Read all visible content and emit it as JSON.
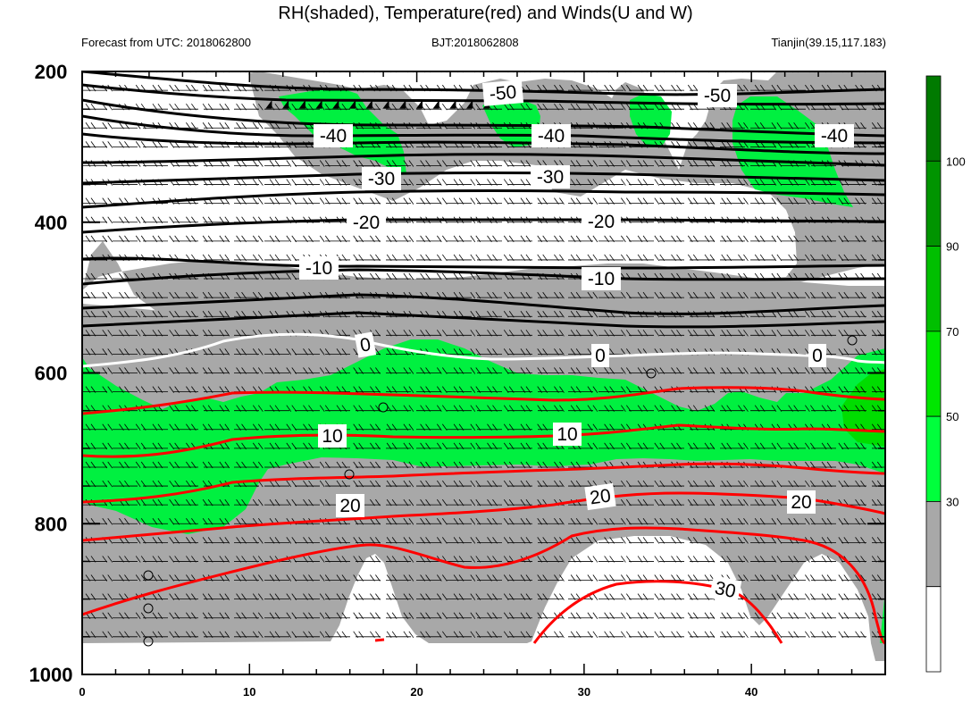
{
  "title": "RH(shaded), Temperature(red) and Winds(U and W)",
  "subtitle_left": "Forecast from UTC: 2018062800",
  "subtitle_center": "BJT:2018062808",
  "subtitle_right": "Tianjin(39.15,117.183)",
  "chart_data": {
    "type": "heatmap",
    "description_fields": [
      "RH",
      "Temperature",
      "Winds"
    ],
    "x_axis": {
      "range": [
        0,
        48
      ],
      "ticks": [
        0,
        10,
        20,
        30,
        40
      ]
    },
    "y_axis": {
      "range": [
        200,
        1000
      ],
      "inverted": true,
      "ticks": [
        200,
        400,
        600,
        800,
        1000
      ]
    },
    "colorbar": {
      "levels": [
        30,
        50,
        70,
        90,
        100
      ],
      "colors": [
        "#ffffff",
        "#a8a8a8",
        "#00ff3c",
        "#00e600",
        "#00bf00",
        "#009400",
        "#007a00"
      ]
    },
    "temperature_contours": {
      "black_labels": [
        "-50",
        "-50",
        "-40",
        "-40",
        "-40",
        "-30",
        "-30",
        "-20",
        "-20",
        "-10",
        "-10"
      ],
      "white_labels": [
        "0",
        "0",
        "0"
      ],
      "red_labels": [
        "10",
        "10",
        "20",
        "20",
        "20",
        "30"
      ]
    },
    "markers": "circles denote calm wind"
  }
}
